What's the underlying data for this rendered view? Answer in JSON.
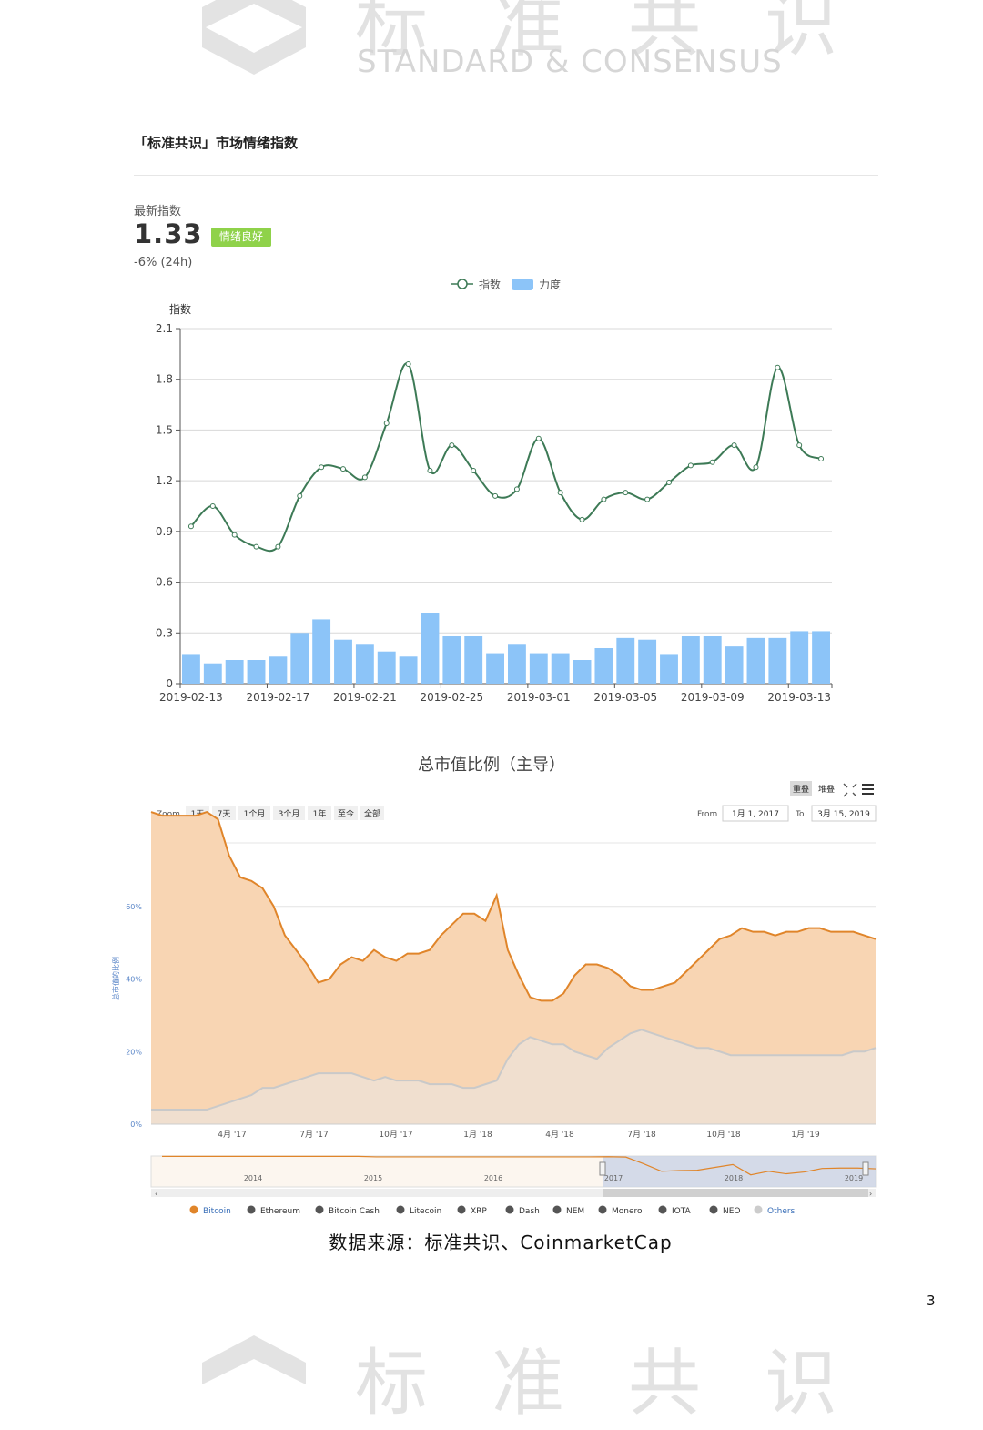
{
  "watermark": {
    "cn": "标准共识",
    "en": "STANDARD & CONSENSUS"
  },
  "section_title": "「标准共识」市场情绪指数",
  "latest": {
    "label": "最新指数",
    "value": "1.33",
    "badge": "情绪良好",
    "change": "-6% (24h)"
  },
  "colors": {
    "index_line": "#3d7a56",
    "strength_bar": "#8cc4f8",
    "badge": "#8fd24a",
    "bitcoin": "#e0852a",
    "bitcoin_fill": "#f8d5b3",
    "others_fill": "#f0dfcf",
    "others_line": "#c9c9c9"
  },
  "chart_data": [
    {
      "type": "line+bar",
      "legend": [
        "指数",
        "力度"
      ],
      "ylabel": "指数",
      "ylim": [
        0,
        2.1
      ],
      "yticks": [
        "0",
        "0.3",
        "0.6",
        "0.9",
        "1.2",
        "1.5",
        "1.8",
        "2.1"
      ],
      "x_tick_labels": [
        "2019-02-13",
        "2019-02-17",
        "2019-02-21",
        "2019-02-25",
        "2019-03-01",
        "2019-03-05",
        "2019-03-09",
        "2019-03-13"
      ],
      "series": [
        {
          "name": "指数",
          "type": "line",
          "values": [
            0.93,
            1.05,
            0.88,
            0.81,
            0.81,
            1.11,
            1.28,
            1.27,
            1.22,
            1.54,
            1.89,
            1.26,
            1.41,
            1.26,
            1.11,
            1.15,
            1.45,
            1.13,
            0.97,
            1.09,
            1.13,
            1.09,
            1.19,
            1.29,
            1.31,
            1.41,
            1.28,
            1.87,
            1.41,
            1.33
          ]
        },
        {
          "name": "力度",
          "type": "bar",
          "values": [
            0.17,
            0.12,
            0.14,
            0.14,
            0.16,
            0.3,
            0.38,
            0.26,
            0.23,
            0.19,
            0.16,
            0.42,
            0.28,
            0.28,
            0.18,
            0.23,
            0.18,
            0.18,
            0.14,
            0.21,
            0.27,
            0.26,
            0.17,
            0.28,
            0.28,
            0.22,
            0.27,
            0.27,
            0.31,
            0.31
          ]
        }
      ]
    },
    {
      "type": "area",
      "title": "总市值比例（主导）",
      "ylabel": "总市值的比例",
      "ylim": [
        0,
        80
      ],
      "yticks": [
        "0%",
        "20%",
        "40%",
        "60%"
      ],
      "x_tick_labels": [
        "4月 '17",
        "7月 '17",
        "10月 '17",
        "1月 '18",
        "4月 '18",
        "7月 '18",
        "10月 '18",
        "1月 '19"
      ],
      "series": [
        {
          "name": "Bitcoin",
          "values": [
            86,
            85,
            85,
            85,
            85,
            86,
            84,
            74,
            68,
            67,
            65,
            60,
            52,
            48,
            44,
            39,
            40,
            44,
            46,
            45,
            48,
            46,
            45,
            47,
            47,
            48,
            52,
            55,
            58,
            58,
            56,
            63,
            48,
            41,
            35,
            34,
            34,
            36,
            41,
            44,
            44,
            43,
            41,
            38,
            37,
            37,
            38,
            39,
            42,
            45,
            48,
            51,
            52,
            54,
            53,
            53,
            52,
            53,
            53,
            54,
            54,
            53,
            53,
            53,
            52,
            51
          ]
        },
        {
          "name": "Others",
          "values": [
            4,
            4,
            4,
            4,
            4,
            4,
            5,
            6,
            7,
            8,
            10,
            10,
            11,
            12,
            13,
            14,
            14,
            14,
            14,
            13,
            12,
            13,
            12,
            12,
            12,
            11,
            11,
            11,
            10,
            10,
            11,
            12,
            18,
            22,
            24,
            23,
            22,
            22,
            20,
            19,
            18,
            21,
            23,
            25,
            26,
            25,
            24,
            23,
            22,
            21,
            21,
            20,
            19,
            19,
            19,
            19,
            19,
            19,
            19,
            19,
            19,
            19,
            19,
            20,
            20,
            21
          ]
        }
      ],
      "legend": [
        "Bitcoin",
        "Ethereum",
        "Bitcoin Cash",
        "Litecoin",
        "XRP",
        "Dash",
        "NEM",
        "Monero",
        "IOTA",
        "NEO",
        "Others"
      ],
      "navigator_labels": [
        "2014",
        "2015",
        "2016",
        "2017",
        "2018",
        "2019"
      ]
    }
  ],
  "controls": {
    "stack_buttons": [
      "重叠",
      "堆叠"
    ],
    "zoom_label": "Zoom",
    "zoom_buttons": [
      "1天",
      "7天",
      "1个月",
      "3个月",
      "1年",
      "至今",
      "全部"
    ],
    "from_label": "From",
    "from_value": "1月 1, 2017",
    "to_label": "To",
    "to_value": "3月 15, 2019"
  },
  "source": "数据来源：标准共识、CoinmarketCap",
  "page_number": "3"
}
